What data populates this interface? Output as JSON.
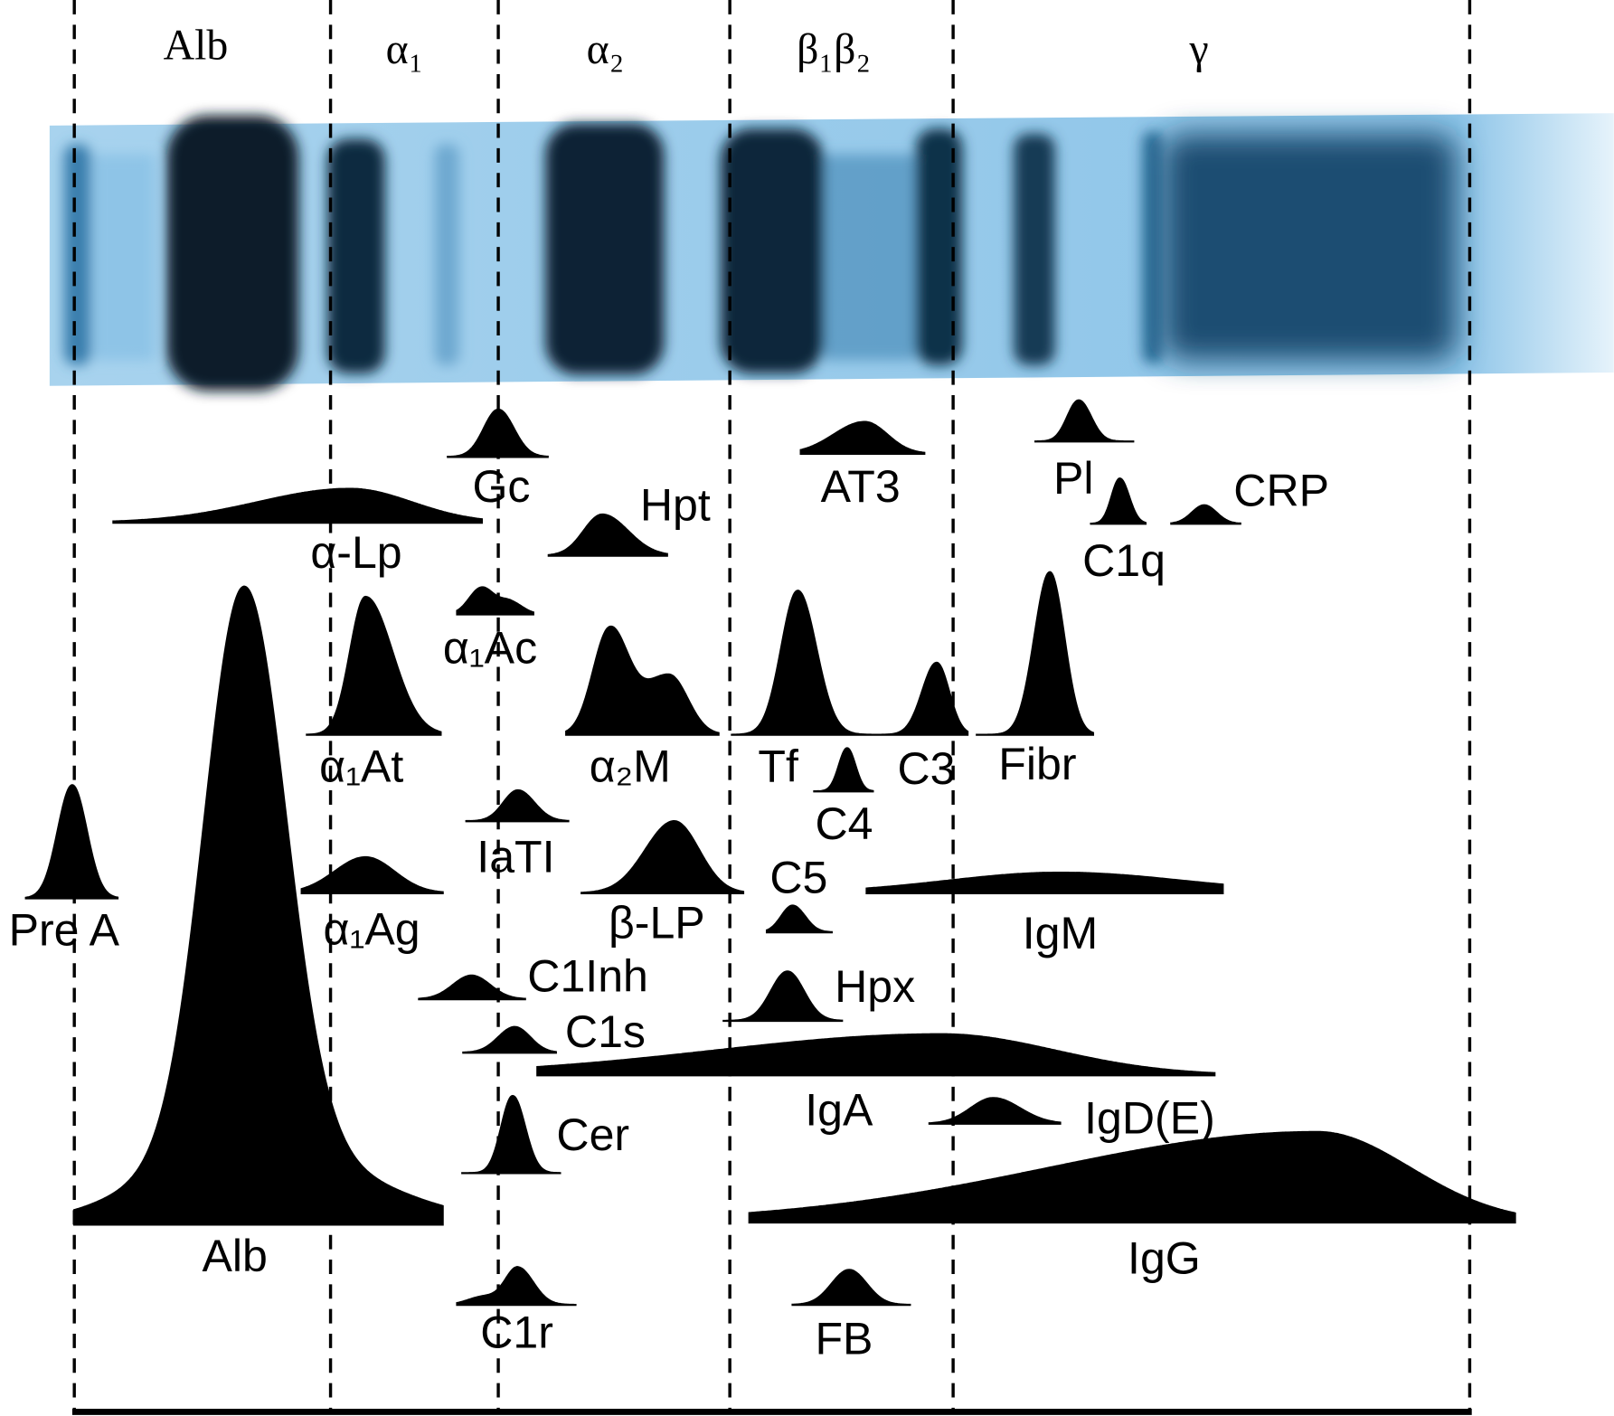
{
  "zones": [
    "Alb",
    "α₁",
    "α₂",
    "β₁β₂",
    "γ"
  ],
  "proteins": [
    "Gc",
    "α-Lp",
    "Hpt",
    "AT3",
    "Pl",
    "C1q",
    "CRP",
    "α₁Ac",
    "α₁At",
    "α₂M",
    "Tf",
    "C3",
    "Fibr",
    "C4",
    "IaTI",
    "Pre A",
    "α₁Ag",
    "β-LP",
    "C5",
    "IgM",
    "C1Inh",
    "Hpx",
    "C1s",
    "IgA",
    "IgD(E)",
    "Cer",
    "Alb",
    "IgG",
    "C1r",
    "FB"
  ]
}
